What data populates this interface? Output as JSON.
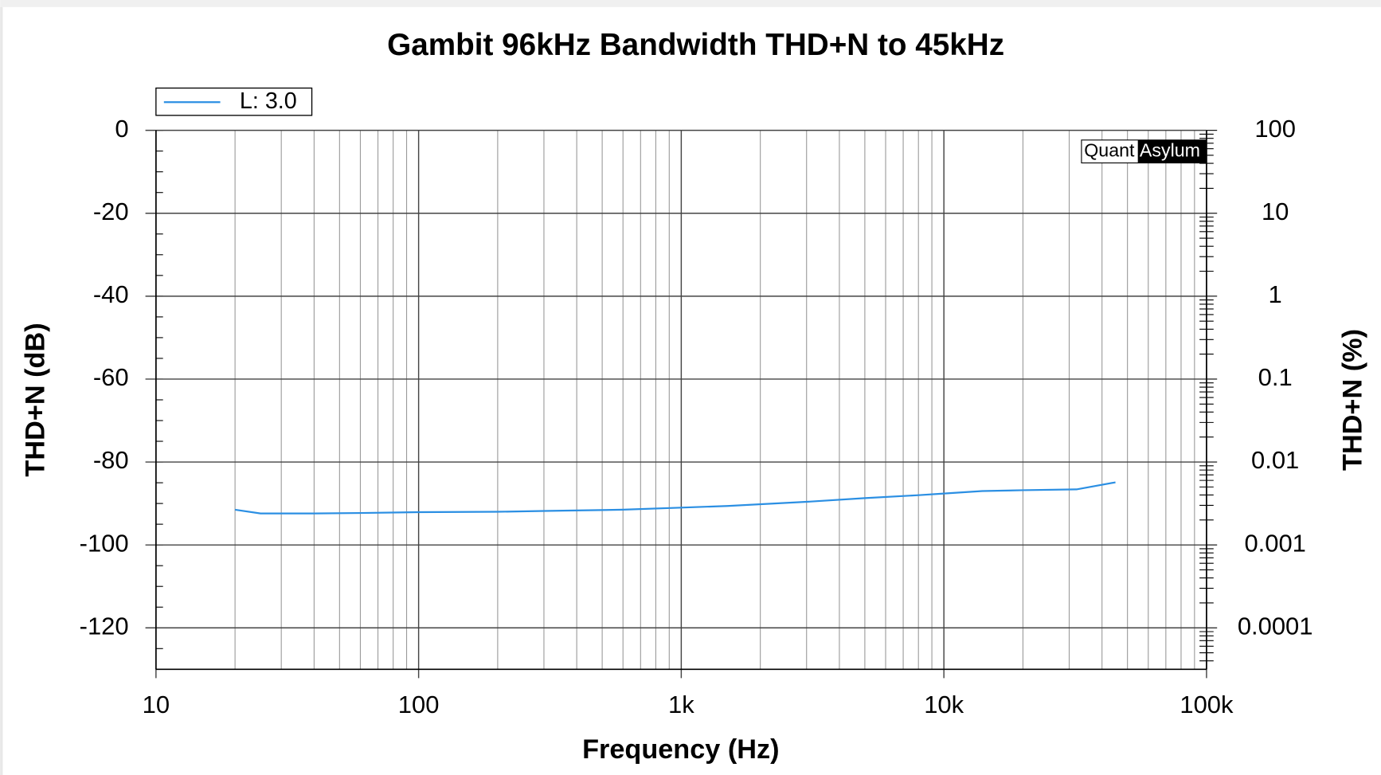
{
  "chart_data": {
    "type": "line",
    "title": "Gambit 96kHz Bandwidth THD+N to 45kHz",
    "xlabel": "Frequency (Hz)",
    "ylabel": "THD+N (dB)",
    "y2label": "THD+N (%)",
    "annotations": [
      "Quant",
      "Asylum"
    ],
    "xscale": "log",
    "xlim": [
      10,
      100000
    ],
    "xticks": [
      10,
      100,
      {
        "value": 1000,
        "label": "1k"
      },
      {
        "value": 10000,
        "label": "10k"
      },
      {
        "value": 100000,
        "label": "100k"
      }
    ],
    "ylim": [
      -130,
      0
    ],
    "yticks": [
      0,
      -20,
      -40,
      -60,
      -80,
      -100,
      -120
    ],
    "y2scale": "log",
    "y2lim": [
      3.16e-05,
      100
    ],
    "y2ticks": [
      100,
      10,
      1,
      0.1,
      0.01,
      0.001,
      0.0001
    ],
    "grid": true,
    "legend": "top-left",
    "x": [
      20,
      25,
      30,
      40,
      60,
      100,
      200,
      300,
      600,
      1000,
      1500,
      3000,
      5000,
      8000,
      10000,
      14000,
      20000,
      32000,
      45000
    ],
    "series": [
      {
        "name": "L: 3.0",
        "color": "#2b8fe3",
        "values": [
          -91.5,
          -92.4,
          -92.4,
          -92.4,
          -92.3,
          -92.1,
          -92,
          -91.8,
          -91.5,
          -91,
          -90.6,
          -89.6,
          -88.7,
          -88,
          -87.6,
          -87,
          -86.8,
          -86.6,
          -84.9
        ]
      }
    ]
  }
}
